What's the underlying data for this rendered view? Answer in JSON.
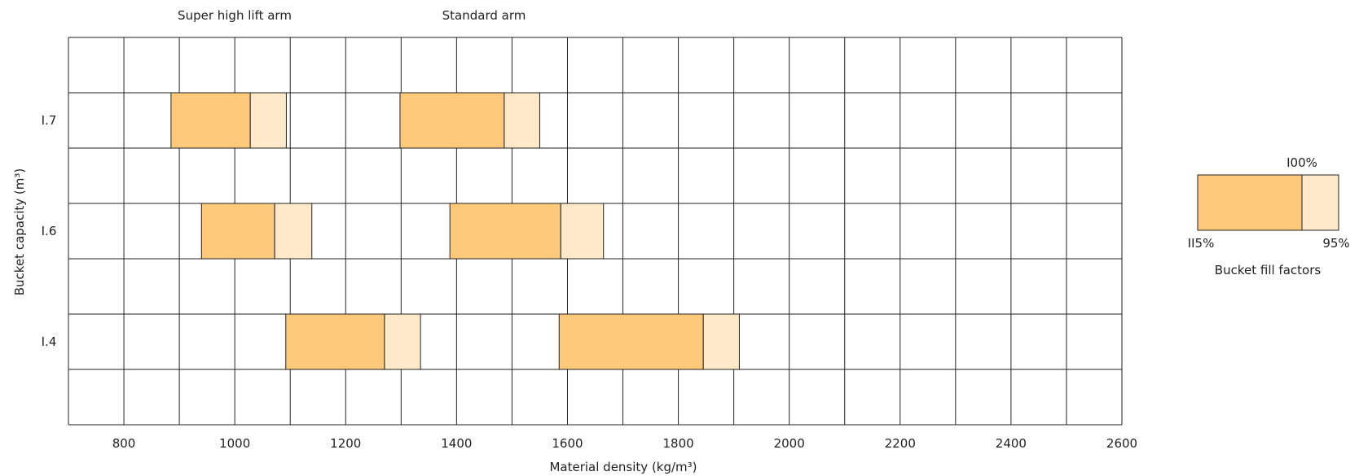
{
  "chart_data": {
    "type": "bar",
    "ylabel": "Bucket capacity (m³)",
    "xlabel": "Material density (kg/m³)",
    "xlim": [
      700,
      2600
    ],
    "x_ticks": [
      "800",
      "1000",
      "1200",
      "1400",
      "1600",
      "1800",
      "2000",
      "2200",
      "2400",
      "2600"
    ],
    "x_tick_values": [
      800,
      1000,
      1200,
      1400,
      1600,
      1800,
      2000,
      2200,
      2400,
      2600
    ],
    "grid": true,
    "categories": [
      "1.7",
      "1.6",
      "1.4"
    ],
    "category_labels": [
      "I.7",
      "I.6",
      "I.4"
    ],
    "series": [
      {
        "name": "Super high lift arm",
        "values": [
          {
            "capacity": "1.7",
            "fill_115": 885,
            "fill_100": 1028,
            "fill_95": 1093
          },
          {
            "capacity": "1.6",
            "fill_115": 940,
            "fill_100": 1072,
            "fill_95": 1139
          },
          {
            "capacity": "1.4",
            "fill_115": 1092,
            "fill_100": 1270,
            "fill_95": 1335
          }
        ]
      },
      {
        "name": "Standard arm",
        "values": [
          {
            "capacity": "1.7",
            "fill_115": 1298,
            "fill_100": 1486,
            "fill_95": 1550
          },
          {
            "capacity": "1.6",
            "fill_115": 1388,
            "fill_100": 1588,
            "fill_95": 1665
          },
          {
            "capacity": "1.4",
            "fill_115": 1585,
            "fill_100": 1845,
            "fill_95": 1910
          }
        ]
      }
    ],
    "legend": {
      "title": "Bucket fill factors",
      "label_100": "I00%",
      "label_115": "II5%",
      "label_95": "95%",
      "position": "right"
    },
    "colors": {
      "fill_115_to_100": "#FEC97A",
      "fill_100_to_95": "#FFE9C8",
      "grid": "#222222"
    }
  }
}
